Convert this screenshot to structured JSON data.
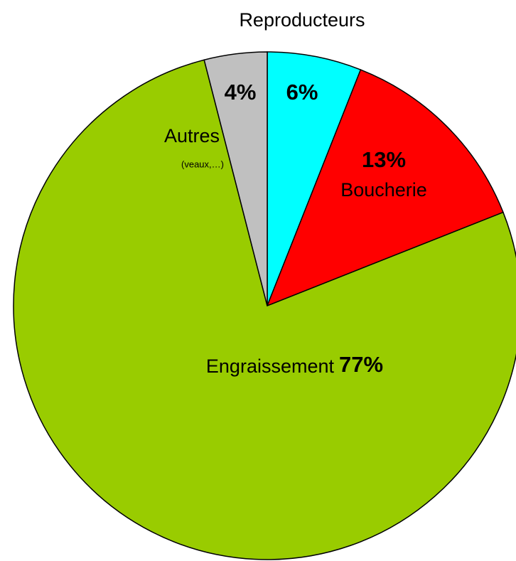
{
  "chart_data": {
    "type": "pie",
    "categories": [
      "Reproducteurs",
      "Boucherie",
      "Engraissement",
      "Autres"
    ],
    "values": [
      6,
      13,
      77,
      4
    ],
    "value_labels": [
      "6%",
      "13%",
      "77%",
      "4%"
    ],
    "colors": [
      "#00ffff",
      "#ff0000",
      "#99cc00",
      "#c0c0c0"
    ],
    "annotations": [
      "(veaux,…)"
    ]
  }
}
